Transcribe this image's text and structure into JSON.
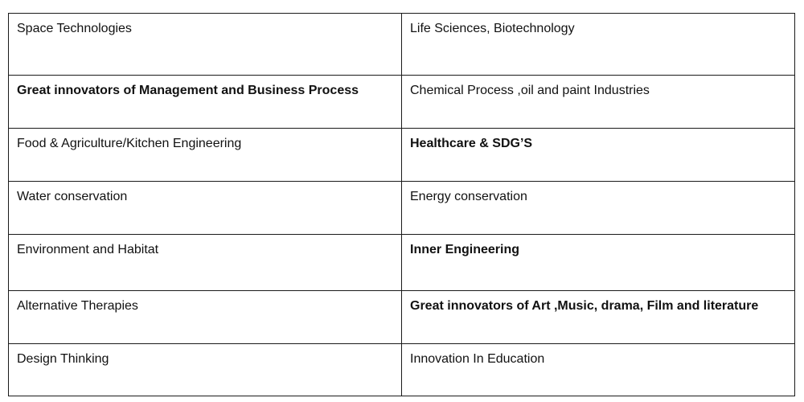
{
  "table": {
    "rows": [
      {
        "left": "Space Technologies",
        "right": "Life Sciences, Biotechnology",
        "left_bold": false,
        "right_bold": false
      },
      {
        "left": "Great innovators of Management and Business Process",
        "right": "Chemical Process ,oil and  paint Industries",
        "left_bold": true,
        "right_bold": false
      },
      {
        "left": "Food & Agriculture/Kitchen Engineering",
        "right": "Healthcare & SDG’S",
        "left_bold": false,
        "right_bold": true
      },
      {
        "left": "Water conservation",
        "right": "Energy conservation",
        "left_bold": false,
        "right_bold": false
      },
      {
        "left": "Environment and Habitat",
        "right": "Inner Engineering",
        "left_bold": false,
        "right_bold": true
      },
      {
        "left": "Alternative Therapies",
        "right": "Great innovators of Art ,Music, drama, Film and literature",
        "left_bold": false,
        "right_bold": true
      },
      {
        "left": "Design Thinking",
        "right": "Innovation In Education",
        "left_bold": false,
        "right_bold": false
      }
    ]
  }
}
